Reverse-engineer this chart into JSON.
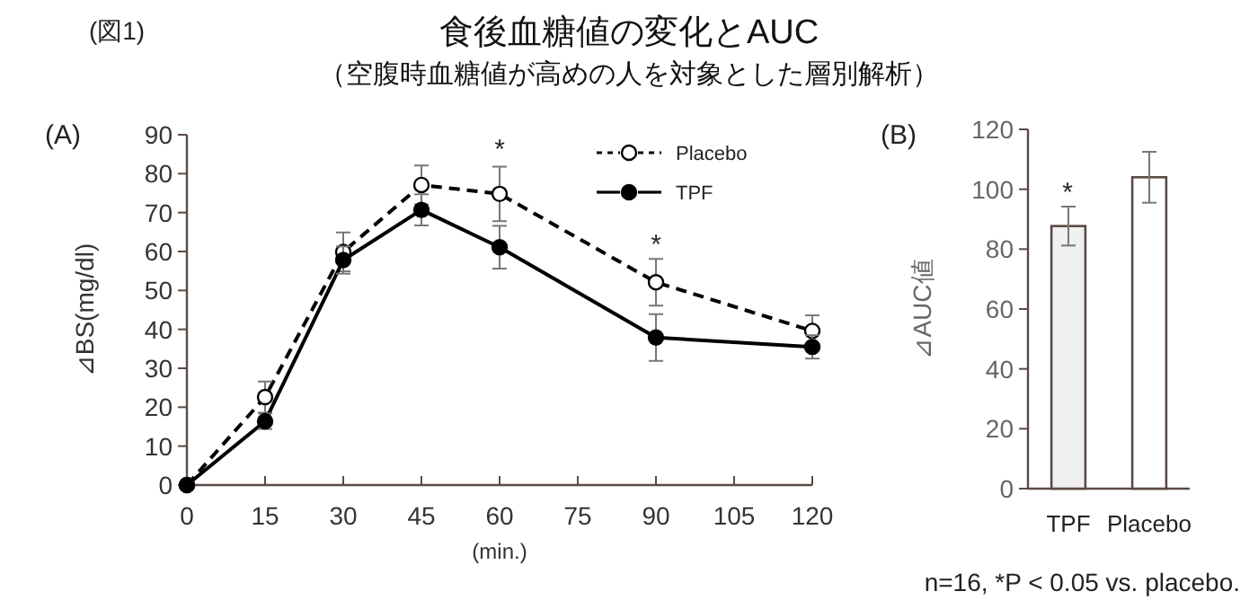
{
  "chart_data": [
    {
      "type": "line",
      "title": "食後血糖値の変化とAUC",
      "subtitle": "（空腹時血糖値が高めの人を対象とした層別解析）",
      "ylabel": "⊿BS(mg/dl)",
      "xlabel": "(min.)",
      "annotations": [
        "(図1)",
        "(A)",
        "*",
        "*"
      ],
      "x": [
        0,
        15,
        30,
        45,
        60,
        90,
        120
      ],
      "series": [
        {
          "name": "Placebo",
          "color": "#000000",
          "line_style": "dashed",
          "values": [
            0,
            22.6,
            59.9,
            77.1,
            74.8,
            52.1,
            39.6
          ],
          "errors": [
            null,
            4,
            5,
            5,
            7,
            6,
            4
          ]
        },
        {
          "name": "TPF",
          "color": "#000000",
          "line_style": "solid",
          "values": [
            0,
            16.4,
            57.8,
            70.7,
            61.1,
            37.9,
            35.5
          ],
          "errors": [
            null,
            2,
            3.5,
            4,
            5.5,
            6,
            3
          ]
        }
      ],
      "xlim": [
        0,
        120
      ],
      "xticks": [
        0,
        15,
        30,
        45,
        60,
        75,
        90,
        105,
        120
      ],
      "ylim": [
        0,
        90
      ],
      "yticks": [
        0,
        10,
        20,
        30,
        40,
        50,
        60,
        70,
        80,
        90
      ],
      "marker": "circle",
      "legend": "top right"
    },
    {
      "type": "bar",
      "ylabel": "⊿AUC値",
      "categories": [
        "TPF",
        "Placebo"
      ],
      "values": [
        87.7,
        104
      ],
      "colors": [
        "#f0f0f0",
        "#ffffff"
      ],
      "errors": [
        6.5,
        8.5
      ],
      "annotations": [
        "(B)",
        "n=16, *P < 0.05 vs. placebo.",
        "*"
      ],
      "ylim": [
        0,
        120
      ],
      "yticks": [
        0,
        20,
        40,
        60,
        80,
        100,
        120
      ]
    }
  ]
}
